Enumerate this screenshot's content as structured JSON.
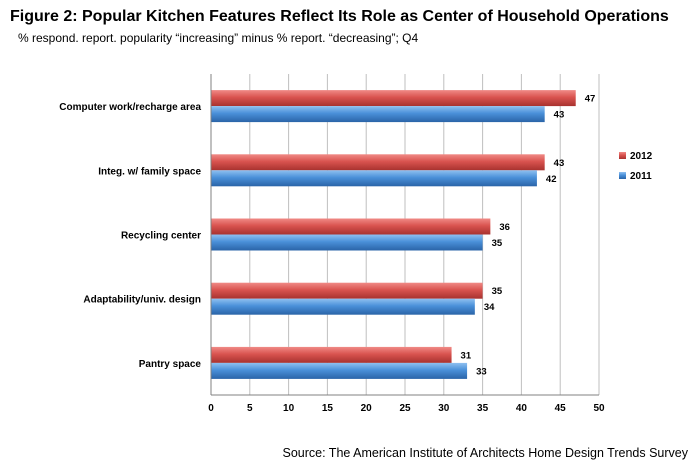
{
  "header": {
    "title": "Figure 2: Popular Kitchen Features Reflect Its Role as Center of Household Operations",
    "subtitle": "% respond. report. popularity “increasing” minus % report. “decreasing”; Q4"
  },
  "footer": {
    "source": "Source: The American Institute of Architects Home Design Trends Survey"
  },
  "colors": {
    "series_2012": "#d9534f",
    "series_2011": "#4a90d9",
    "grid": "#bfbfbf"
  },
  "chart_data": {
    "type": "bar",
    "orientation": "horizontal",
    "categories": [
      "Computer work/recharge area",
      "Integ. w/ family space",
      "Recycling center",
      "Adaptability/univ. design",
      "Pantry space"
    ],
    "series": [
      {
        "name": "2012",
        "values": [
          47,
          43,
          36,
          35,
          31
        ]
      },
      {
        "name": "2011",
        "values": [
          43,
          42,
          35,
          34,
          33
        ]
      }
    ],
    "xlim": [
      0,
      50
    ],
    "xticks": [
      0,
      5,
      10,
      15,
      20,
      25,
      30,
      35,
      40,
      45,
      50
    ],
    "grid": true,
    "legend_position": "right",
    "data_labels": true
  }
}
